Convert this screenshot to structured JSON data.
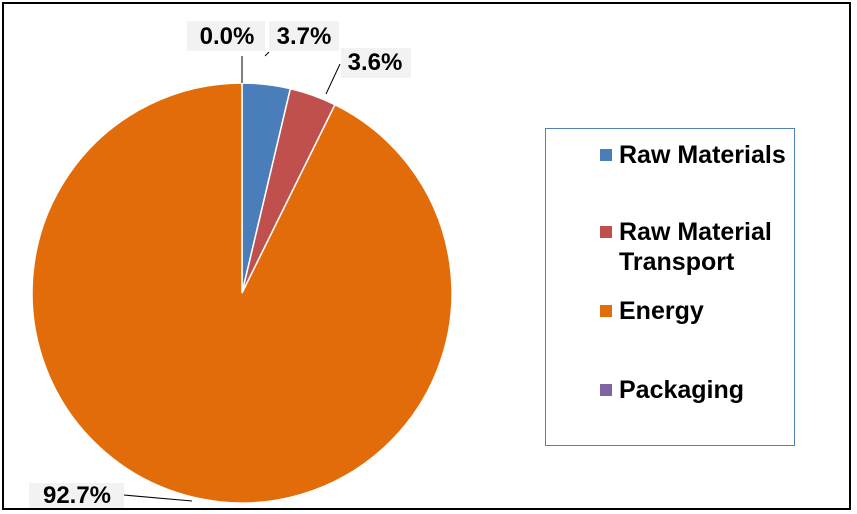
{
  "chart_data": {
    "type": "pie",
    "categories": [
      "Raw Materials",
      "Raw Material Transport",
      "Energy",
      "Packaging"
    ],
    "values": [
      3.7,
      3.6,
      92.7,
      0.0
    ],
    "data_labels": [
      "3.7%",
      "3.6%",
      "92.7%",
      "0.0%"
    ],
    "colors": [
      "#4a7ebb",
      "#c0504d",
      "#e36c0a",
      "#8064a2"
    ],
    "start_angle": "12 o'clock",
    "direction": "clockwise",
    "legend": {
      "position": "right",
      "items": [
        {
          "label": "Raw Materials",
          "color": "#4a7ebb"
        },
        {
          "label": "Raw Material Transport",
          "color": "#c0504d"
        },
        {
          "label": "Energy",
          "color": "#e36c0a"
        },
        {
          "label": "Packaging",
          "color": "#8064a2"
        }
      ]
    }
  }
}
